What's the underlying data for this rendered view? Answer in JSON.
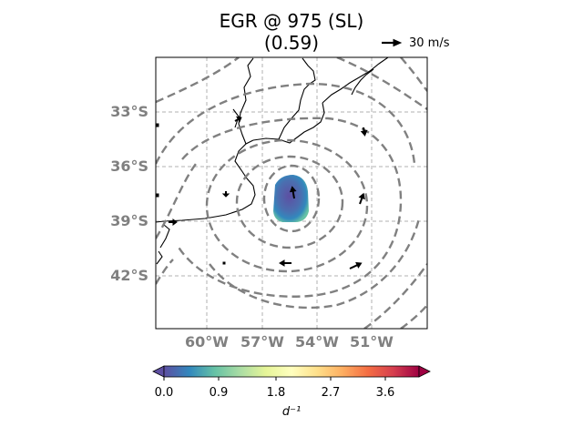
{
  "title": {
    "line1": "EGR @ 975 (SL)",
    "line2": "(0.59)"
  },
  "quiver_key": {
    "label": "30 m/s"
  },
  "map": {
    "lat_labels": [
      "33°S",
      "36°S",
      "39°S",
      "42°S"
    ],
    "lon_labels": [
      "60°W",
      "57°W",
      "54°W",
      "51°W"
    ],
    "gridlines": true,
    "contour_style": "dashed",
    "contour_color": "#808080"
  },
  "colorbar": {
    "ticks": [
      "0.0",
      "0.9",
      "1.8",
      "2.7",
      "3.6"
    ],
    "label": "d⁻¹",
    "colormap": "Spectral_r",
    "range": [
      0.0,
      4.2
    ]
  }
}
